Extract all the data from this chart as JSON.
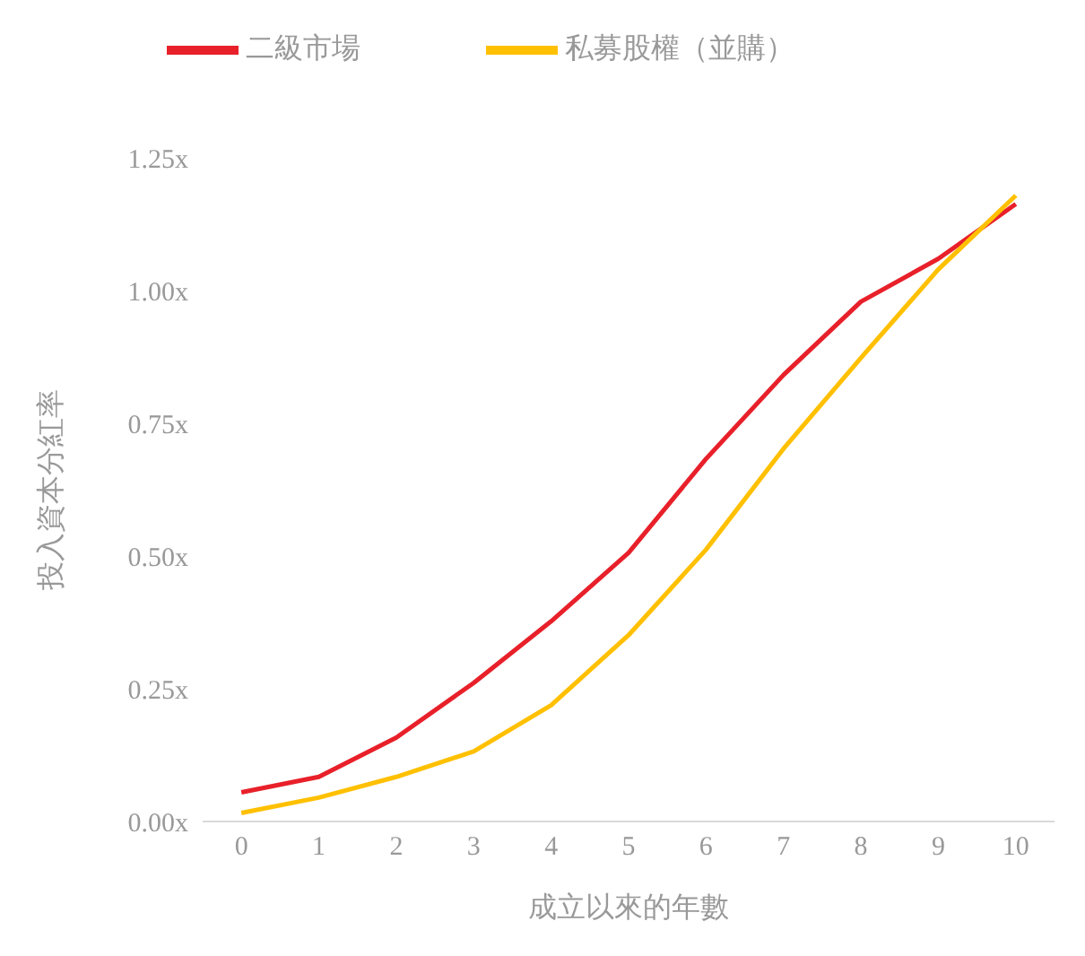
{
  "chart_data": {
    "type": "line",
    "xlabel": "成立以來的年數",
    "ylabel": "投入資本分紅率",
    "x": [
      0,
      1,
      2,
      3,
      4,
      5,
      6,
      7,
      8,
      9,
      10
    ],
    "series": [
      {
        "name": "二級市場",
        "color": "#e8202a",
        "values": [
          0.055,
          0.084,
          0.158,
          0.261,
          0.377,
          0.506,
          0.683,
          0.841,
          0.979,
          1.06,
          1.163
        ]
      },
      {
        "name": "私募股權（並購）",
        "color": "#ffc000",
        "values": [
          0.016,
          0.045,
          0.084,
          0.132,
          0.219,
          0.351,
          0.512,
          0.702,
          0.873,
          1.04,
          1.179
        ]
      }
    ],
    "xlim": [
      -0.5,
      10.5
    ],
    "xticks": [
      0,
      1,
      2,
      3,
      4,
      5,
      6,
      7,
      8,
      9,
      10
    ],
    "ylim": [
      0,
      1.25
    ],
    "yticks": [
      {
        "value": 0,
        "label": "0.00x"
      },
      {
        "value": 0.25,
        "label": "0.25x"
      },
      {
        "value": 0.5,
        "label": "0.50x"
      },
      {
        "value": 0.75,
        "label": "0.75x"
      },
      {
        "value": 1,
        "label": "1.00x"
      },
      {
        "value": 1.25,
        "label": "1.25x"
      }
    ],
    "grid": false,
    "legend": "top",
    "marker": "none",
    "line_style": "solid"
  }
}
